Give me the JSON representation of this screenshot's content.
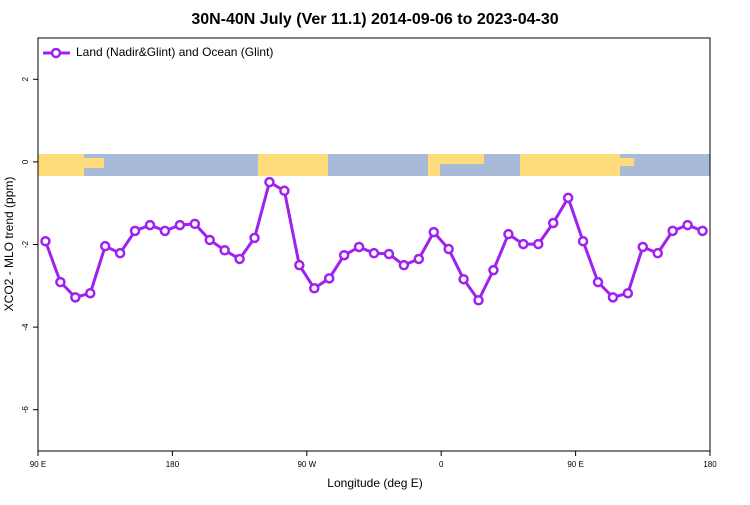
{
  "chart_data": {
    "type": "line",
    "title": "30N-40N July (Ver 11.1)   2014-09-06 to 2023-04-30",
    "x_label": "Longitude (deg E)",
    "y_label": "XCO2 - MLO trend (ppm)",
    "xlim": [
      90,
      540
    ],
    "xticks": [
      {
        "value": 90,
        "label": "90 E"
      },
      180,
      {
        "value": 270,
        "label": "90 W"
      },
      {
        "value": 360,
        "label": "0"
      },
      {
        "value": 450,
        "label": "90 E"
      },
      {
        "value": 540,
        "label": "180"
      }
    ],
    "ylim": [
      -7,
      3
    ],
    "yticks": [
      -6,
      -4,
      -2,
      0,
      2
    ],
    "legend": "top-left",
    "x": [
      95,
      105,
      115,
      125,
      135,
      145,
      155,
      165,
      175,
      185,
      195,
      205,
      215,
      225,
      235,
      245,
      255,
      265,
      275,
      285,
      295,
      305,
      315,
      325,
      335,
      345,
      355,
      365,
      375,
      385,
      395,
      405,
      415,
      425,
      435,
      445,
      455,
      465,
      475,
      485,
      495,
      505,
      515,
      525,
      535
    ],
    "series": [
      {
        "name": "Land (Nadir&Glint) and Ocean (Glint)",
        "color": "#a020f0",
        "values": [
          -1.92,
          -2.91,
          -3.28,
          -3.18,
          -2.04,
          -2.21,
          -1.67,
          -1.53,
          -1.67,
          -1.53,
          -1.5,
          -1.89,
          -2.14,
          -2.35,
          -1.84,
          -0.49,
          -0.7,
          -2.5,
          -3.06,
          -2.82,
          -2.26,
          -2.06,
          -2.21,
          -2.23,
          -2.5,
          -2.35,
          -1.7,
          -2.11,
          -2.84,
          -3.35,
          -2.62,
          -1.75,
          -1.99,
          -1.99,
          -1.48,
          -0.87,
          -1.92,
          -2.91,
          -3.28,
          -3.18,
          -2.06,
          -2.21,
          -1.67,
          -1.53,
          -1.67
        ]
      }
    ]
  }
}
